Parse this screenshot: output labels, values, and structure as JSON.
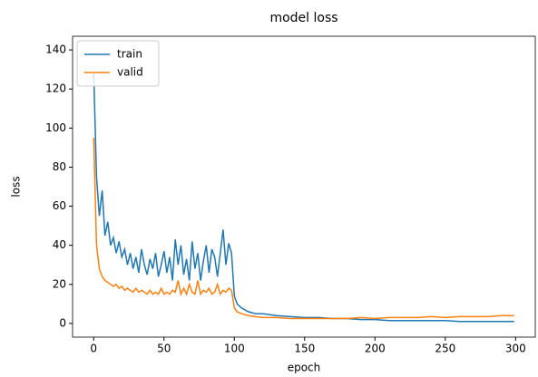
{
  "chart_data": {
    "type": "line",
    "title": "model loss",
    "xlabel": "epoch",
    "ylabel": "loss",
    "x": [
      0,
      2,
      4,
      6,
      8,
      10,
      12,
      14,
      16,
      18,
      20,
      22,
      24,
      26,
      28,
      30,
      32,
      34,
      36,
      38,
      40,
      42,
      44,
      46,
      48,
      50,
      52,
      54,
      56,
      58,
      60,
      62,
      64,
      66,
      68,
      70,
      72,
      74,
      76,
      78,
      80,
      82,
      84,
      86,
      88,
      90,
      92,
      94,
      96,
      98,
      100,
      102,
      105,
      110,
      115,
      120,
      130,
      140,
      150,
      160,
      170,
      180,
      190,
      200,
      210,
      220,
      230,
      240,
      250,
      260,
      270,
      280,
      290,
      299
    ],
    "series": [
      {
        "name": "train",
        "color": "#1f77b4",
        "values": [
          128,
          75,
          55,
          68,
          45,
          52,
          40,
          44,
          36,
          42,
          34,
          38,
          30,
          36,
          28,
          34,
          26,
          38,
          30,
          25,
          33,
          28,
          36,
          24,
          30,
          37,
          26,
          34,
          22,
          43,
          30,
          40,
          25,
          33,
          22,
          42,
          28,
          36,
          22,
          32,
          40,
          26,
          38,
          34,
          24,
          36,
          48,
          30,
          41,
          36,
          14,
          10,
          8,
          6,
          5,
          5,
          4,
          3.5,
          3,
          3,
          2.5,
          2.5,
          2,
          2,
          1.5,
          1.5,
          1.5,
          1.5,
          1.5,
          1,
          1,
          1,
          1,
          1
        ]
      },
      {
        "name": "valid",
        "color": "#ff7f0e",
        "values": [
          95,
          40,
          28,
          24,
          22,
          21,
          20,
          19,
          20,
          18,
          19,
          17,
          18,
          17,
          16,
          18,
          16,
          17,
          16,
          15,
          17,
          15,
          16,
          15,
          18,
          15,
          16,
          15,
          17,
          16,
          22,
          15,
          18,
          15,
          20,
          16,
          15,
          22,
          15,
          17,
          16,
          18,
          15,
          16,
          20,
          15,
          17,
          16,
          18,
          17,
          8,
          6,
          5,
          4,
          3.5,
          3,
          3,
          2.5,
          2.5,
          2.5,
          2.5,
          2.5,
          3,
          2.5,
          3,
          3,
          3,
          3.5,
          3,
          3.5,
          3.5,
          3.5,
          4,
          4
        ]
      }
    ],
    "xlim": [
      -15,
      314
    ],
    "ylim": [
      -7,
      147
    ],
    "xticks": [
      0,
      50,
      100,
      150,
      200,
      250,
      300
    ],
    "yticks": [
      0,
      20,
      40,
      60,
      80,
      100,
      120,
      140
    ],
    "legend": "upper left"
  }
}
